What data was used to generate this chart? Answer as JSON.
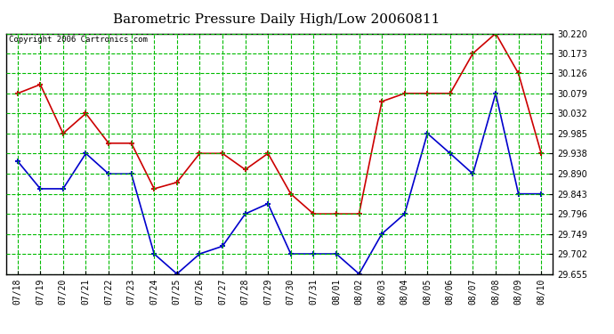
{
  "title": "Barometric Pressure Daily High/Low 20060811",
  "copyright": "Copyright 2006 Cartronics.com",
  "dates": [
    "07/18",
    "07/19",
    "07/20",
    "07/21",
    "07/22",
    "07/23",
    "07/24",
    "07/25",
    "07/26",
    "07/27",
    "07/28",
    "07/29",
    "07/30",
    "07/31",
    "08/01",
    "08/02",
    "08/03",
    "08/04",
    "08/05",
    "08/06",
    "08/07",
    "08/08",
    "08/09",
    "08/10"
  ],
  "high": [
    30.079,
    30.1,
    29.985,
    30.032,
    29.962,
    29.962,
    29.855,
    29.87,
    29.938,
    29.938,
    29.9,
    29.938,
    29.843,
    29.796,
    29.796,
    29.796,
    30.06,
    30.079,
    30.079,
    30.079,
    30.173,
    30.22,
    30.126,
    29.938
  ],
  "low": [
    29.92,
    29.855,
    29.855,
    29.938,
    29.89,
    29.89,
    29.702,
    29.655,
    29.702,
    29.72,
    29.796,
    29.82,
    29.702,
    29.702,
    29.702,
    29.655,
    29.749,
    29.796,
    29.985,
    29.938,
    29.89,
    30.079,
    29.843,
    29.843
  ],
  "high_color": "#cc0000",
  "low_color": "#0000cc",
  "bg_color": "#ffffff",
  "plot_bg_color": "#ffffff",
  "grid_color": "#00bb00",
  "border_color": "#000000",
  "ylim_min": 29.655,
  "ylim_max": 30.22,
  "yticks": [
    29.655,
    29.702,
    29.749,
    29.796,
    29.843,
    29.89,
    29.938,
    29.985,
    30.032,
    30.079,
    30.126,
    30.173,
    30.22
  ],
  "title_fontsize": 11,
  "copyright_fontsize": 6.5,
  "tick_fontsize": 7,
  "marker": "+",
  "markersize": 4,
  "markeredgewidth": 1.5,
  "linewidth": 1.2
}
